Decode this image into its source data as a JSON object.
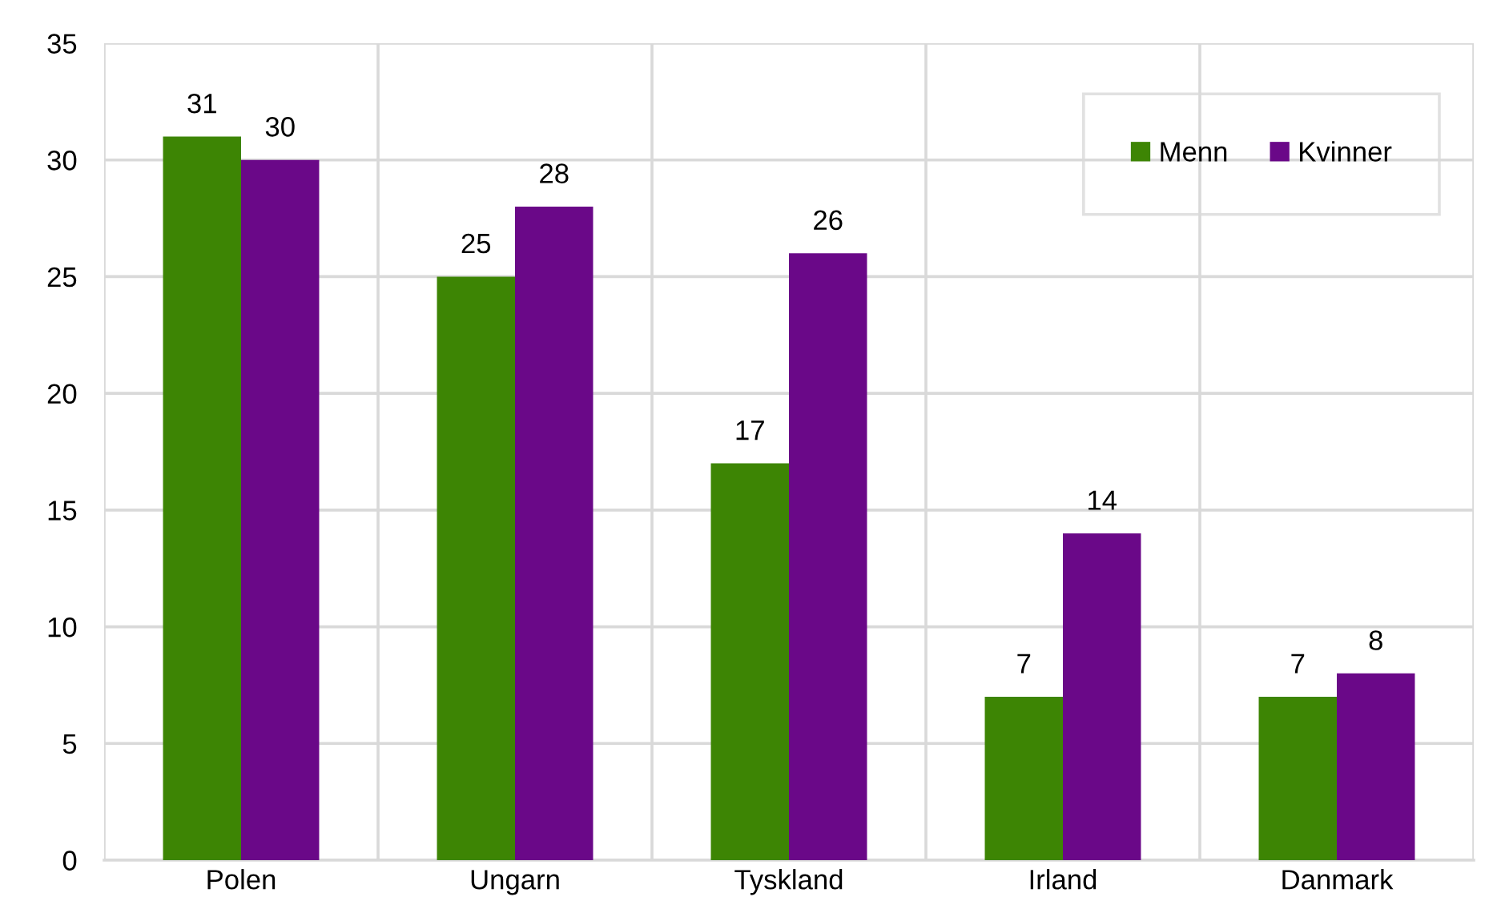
{
  "chart_data": {
    "type": "bar",
    "categories": [
      "Polen",
      "Ungarn",
      "Tyskland",
      "Irland",
      "Danmark"
    ],
    "series": [
      {
        "name": "Menn",
        "color": "#3d8504",
        "values": [
          31,
          25,
          17,
          7,
          7
        ]
      },
      {
        "name": "Kvinner",
        "color": "#6a0888",
        "values": [
          30,
          28,
          26,
          14,
          8
        ]
      }
    ],
    "ylim": [
      0,
      35
    ],
    "yticks": [
      0,
      5,
      10,
      15,
      20,
      25,
      30,
      35
    ],
    "grid": true,
    "legend": "top right",
    "data_labels": true
  }
}
